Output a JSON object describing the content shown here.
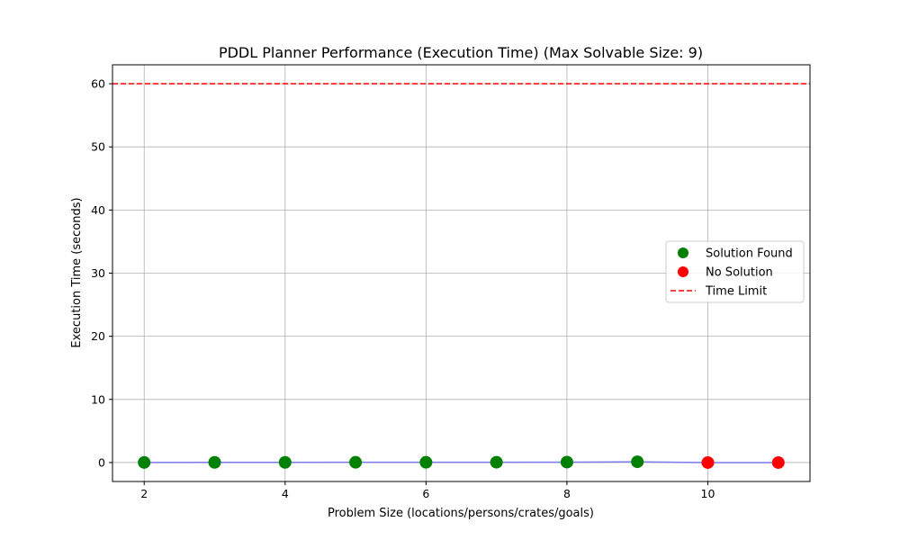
{
  "chart_data": {
    "type": "scatter",
    "title": "PDDL Planner Performance (Execution Time) (Max Solvable Size: 9)",
    "xlabel": "Problem Size (locations/persons/crates/goals)",
    "ylabel": "Execution Time (seconds)",
    "xlim": [
      1.55,
      11.45
    ],
    "ylim": [
      -3,
      63
    ],
    "xticks": [
      2,
      4,
      6,
      8,
      10
    ],
    "yticks": [
      0,
      10,
      20,
      30,
      40,
      50,
      60
    ],
    "grid": true,
    "legend_position": "center-right",
    "x": [
      2,
      3,
      4,
      5,
      6,
      7,
      8,
      9,
      10,
      11
    ],
    "y": [
      0.02,
      0.03,
      0.03,
      0.04,
      0.04,
      0.05,
      0.07,
      0.12,
      0.0,
      0.0
    ],
    "status": [
      "Solution Found",
      "Solution Found",
      "Solution Found",
      "Solution Found",
      "Solution Found",
      "Solution Found",
      "Solution Found",
      "Solution Found",
      "No Solution",
      "No Solution"
    ],
    "series": [
      {
        "name": "Solution Found",
        "color": "#008000",
        "x": [
          2,
          3,
          4,
          5,
          6,
          7,
          8,
          9
        ],
        "y": [
          0.02,
          0.03,
          0.03,
          0.04,
          0.04,
          0.05,
          0.07,
          0.12
        ]
      },
      {
        "name": "No Solution",
        "color": "#ff0000",
        "x": [
          10,
          11
        ],
        "y": [
          0.0,
          0.0
        ]
      }
    ],
    "connecting_line_color": "#6b6bf0",
    "time_limit": {
      "name": "Time Limit",
      "value": 60,
      "color": "#ff0000",
      "style": "dashed"
    }
  }
}
